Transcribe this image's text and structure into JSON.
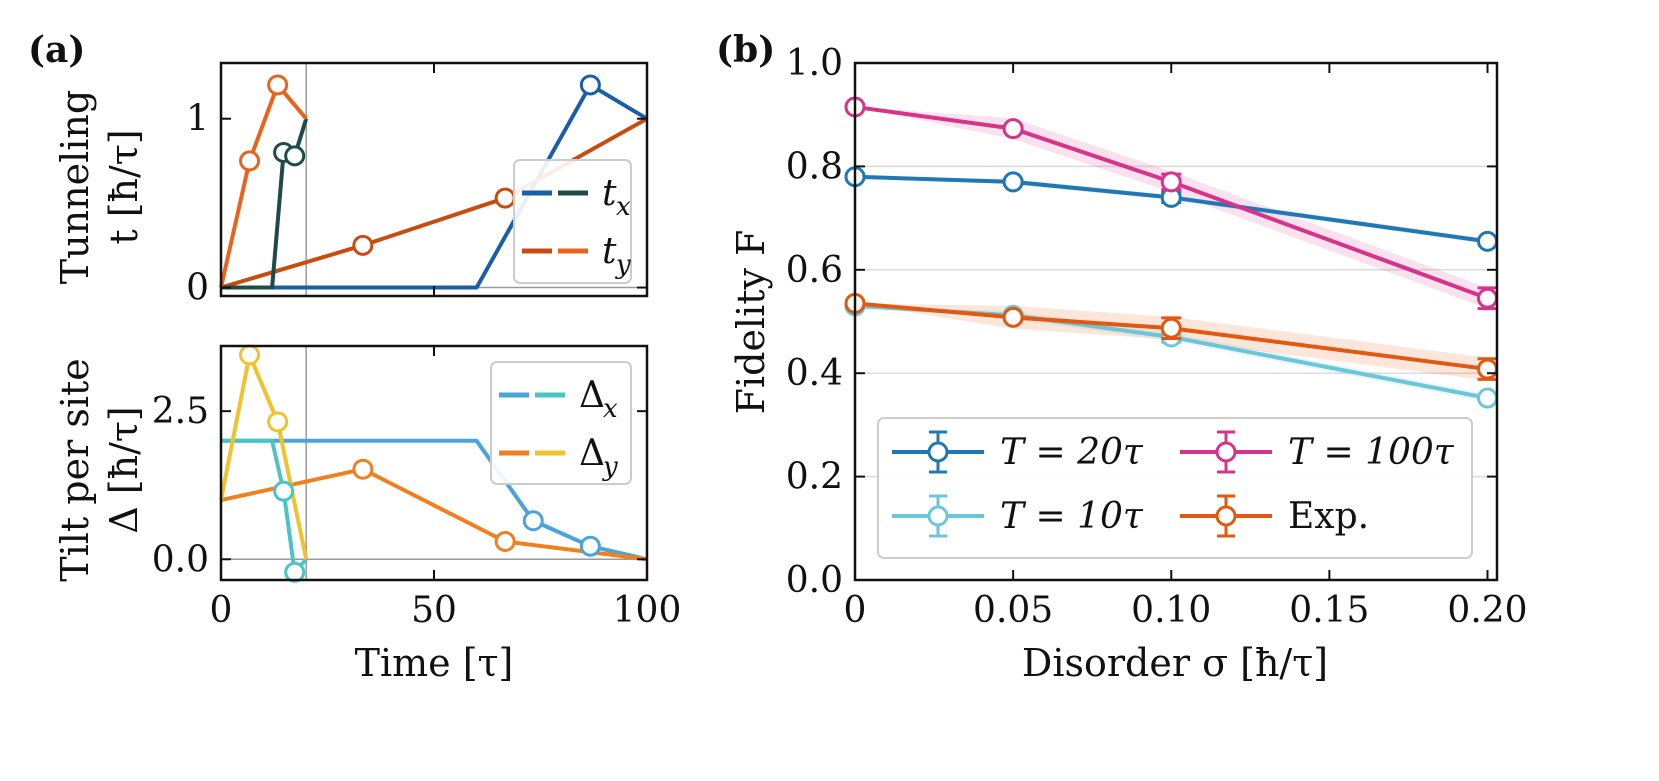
{
  "chart_data": [
    {
      "panel_label": "(a)",
      "type": "line",
      "ylabel": "Tunneling",
      "ylabel2": "t  [ħ/τ]",
      "xlim": [
        0,
        100
      ],
      "ylim": [
        -0.05,
        1.33
      ],
      "xticks": [
        0,
        50,
        100
      ],
      "yticks": [
        0,
        1
      ],
      "ytick_labels": [
        "0",
        "1"
      ],
      "vline_x": 20,
      "hline_y": 0,
      "legend": {
        "location": "center-right",
        "entries": [
          {
            "label": "t",
            "sub": "x",
            "colors": [
              "#1b5da6",
              "#1f4a4a"
            ]
          },
          {
            "label": "t",
            "sub": "y",
            "colors": [
              "#c84b10",
              "#e8631d"
            ]
          }
        ]
      },
      "series": [
        {
          "name": "t_x (T=100τ)",
          "color": "#1b5da6",
          "x": [
            0,
            60,
            86.7,
            100
          ],
          "y": [
            0,
            0,
            1.2,
            1.0
          ],
          "markers": [
            86.7
          ]
        },
        {
          "name": "t_y (T=100τ)",
          "color": "#c84b10",
          "x": [
            0,
            33.3,
            66.7,
            100
          ],
          "y": [
            0,
            0.25,
            0.53,
            1.0
          ],
          "markers": [
            33.3,
            66.7
          ]
        },
        {
          "name": "t_x (T=20τ)",
          "color": "#1f4a4a",
          "x": [
            0,
            12,
            14.7,
            17.3,
            20
          ],
          "y": [
            0,
            0,
            0.8,
            0.78,
            1.0
          ],
          "markers": [
            14.7,
            17.3
          ]
        },
        {
          "name": "t_y (T=20τ)",
          "color": "#e8631d",
          "x": [
            0,
            6.7,
            13.3,
            20
          ],
          "y": [
            0,
            0.75,
            1.2,
            1.0
          ],
          "markers": [
            6.7,
            13.3
          ]
        }
      ]
    },
    {
      "type": "line",
      "ylabel": "Tilt per site",
      "ylabel2": "Δ  [ħ/τ]",
      "xlabel": "Time  [τ]",
      "xlim": [
        0,
        100
      ],
      "ylim": [
        -0.35,
        3.6
      ],
      "xticks": [
        0,
        50,
        100
      ],
      "xtick_labels": [
        "0",
        "50",
        "100"
      ],
      "yticks": [
        0,
        2.5
      ],
      "ytick_labels": [
        "0.0",
        "2.5"
      ],
      "vline_x": 20,
      "hline_y": 0,
      "legend": {
        "location": "top-right",
        "entries": [
          {
            "label": "Δ",
            "sub": "x",
            "colors": [
              "#4aa3d9",
              "#4cc4c4"
            ]
          },
          {
            "label": "Δ",
            "sub": "y",
            "colors": [
              "#f07f1e",
              "#f2c12e"
            ]
          }
        ]
      },
      "series": [
        {
          "name": "Δ_x (T=100τ)",
          "color": "#4aa3d9",
          "x": [
            0,
            60,
            73.3,
            86.7,
            100
          ],
          "y": [
            2.0,
            2.0,
            0.65,
            0.22,
            0.0
          ],
          "markers": [
            73.3,
            86.7
          ]
        },
        {
          "name": "Δ_y (T=100τ)",
          "color": "#f07f1e",
          "x": [
            0,
            33.3,
            66.7,
            100
          ],
          "y": [
            1.0,
            1.52,
            0.3,
            0.0
          ],
          "markers": [
            33.3,
            66.7
          ]
        },
        {
          "name": "Δ_x (T=20τ)",
          "color": "#4cc4c4",
          "x": [
            0,
            12,
            14.7,
            17.3,
            20
          ],
          "y": [
            2.0,
            2.0,
            1.15,
            -0.22,
            0.0
          ],
          "markers": [
            14.7,
            17.3
          ]
        },
        {
          "name": "Δ_y (T=20τ)",
          "color": "#f2c12e",
          "x": [
            0,
            6.7,
            13.3,
            20
          ],
          "y": [
            1.0,
            3.45,
            2.32,
            0.0
          ],
          "markers": [
            6.7,
            13.3
          ]
        }
      ]
    },
    {
      "panel_label": "(b)",
      "type": "line",
      "xlabel": "Disorder  σ  [ħ/τ]",
      "ylabel": "Fidelity  F",
      "xlim": [
        0,
        0.203
      ],
      "ylim": [
        0,
        1.0
      ],
      "xticks": [
        0,
        0.05,
        0.1,
        0.15,
        0.2
      ],
      "xtick_labels": [
        "0",
        "0.05",
        "0.10",
        "0.15",
        "0.20"
      ],
      "yticks": [
        0,
        0.2,
        0.4,
        0.6,
        0.8,
        1.0
      ],
      "ytick_labels": [
        "0.0",
        "0.2",
        "0.4",
        "0.6",
        "0.8",
        "1.0"
      ],
      "grid": true,
      "legend": {
        "location": "bottom",
        "entries": [
          {
            "label": "T = 20τ",
            "color": "#1f78b4"
          },
          {
            "label": "T = 100τ",
            "color": "#d6338a"
          },
          {
            "label": "T = 10τ",
            "color": "#6cc6d9"
          },
          {
            "label": "Exp.",
            "color": "#e2580e"
          }
        ]
      },
      "series": [
        {
          "name": "T = 20τ",
          "color": "#1f78b4",
          "x": [
            0,
            0.05,
            0.1,
            0.2
          ],
          "y": [
            0.78,
            0.77,
            0.74,
            0.655
          ],
          "yerr": [
            0.005,
            0.005,
            0.01,
            0.005
          ],
          "band": 0.005
        },
        {
          "name": "T = 100τ",
          "color": "#d6338a",
          "x": [
            0,
            0.05,
            0.1,
            0.2
          ],
          "y": [
            0.915,
            0.873,
            0.77,
            0.545
          ],
          "yerr": [
            0.005,
            0.005,
            0.015,
            0.02
          ],
          "band": 0.02
        },
        {
          "name": "T = 10τ",
          "color": "#6cc6d9",
          "x": [
            0,
            0.05,
            0.1,
            0.2
          ],
          "y": [
            0.53,
            0.512,
            0.47,
            0.352
          ],
          "yerr": [
            0.005,
            0.005,
            0.01,
            0.005
          ],
          "band": 0.008
        },
        {
          "name": "Exp.",
          "color": "#e2580e",
          "x": [
            0,
            0.05,
            0.1,
            0.2
          ],
          "y": [
            0.535,
            0.508,
            0.487,
            0.408
          ],
          "yerr": [
            0.005,
            0.005,
            0.02,
            0.02
          ],
          "band": 0.022
        }
      ]
    }
  ]
}
